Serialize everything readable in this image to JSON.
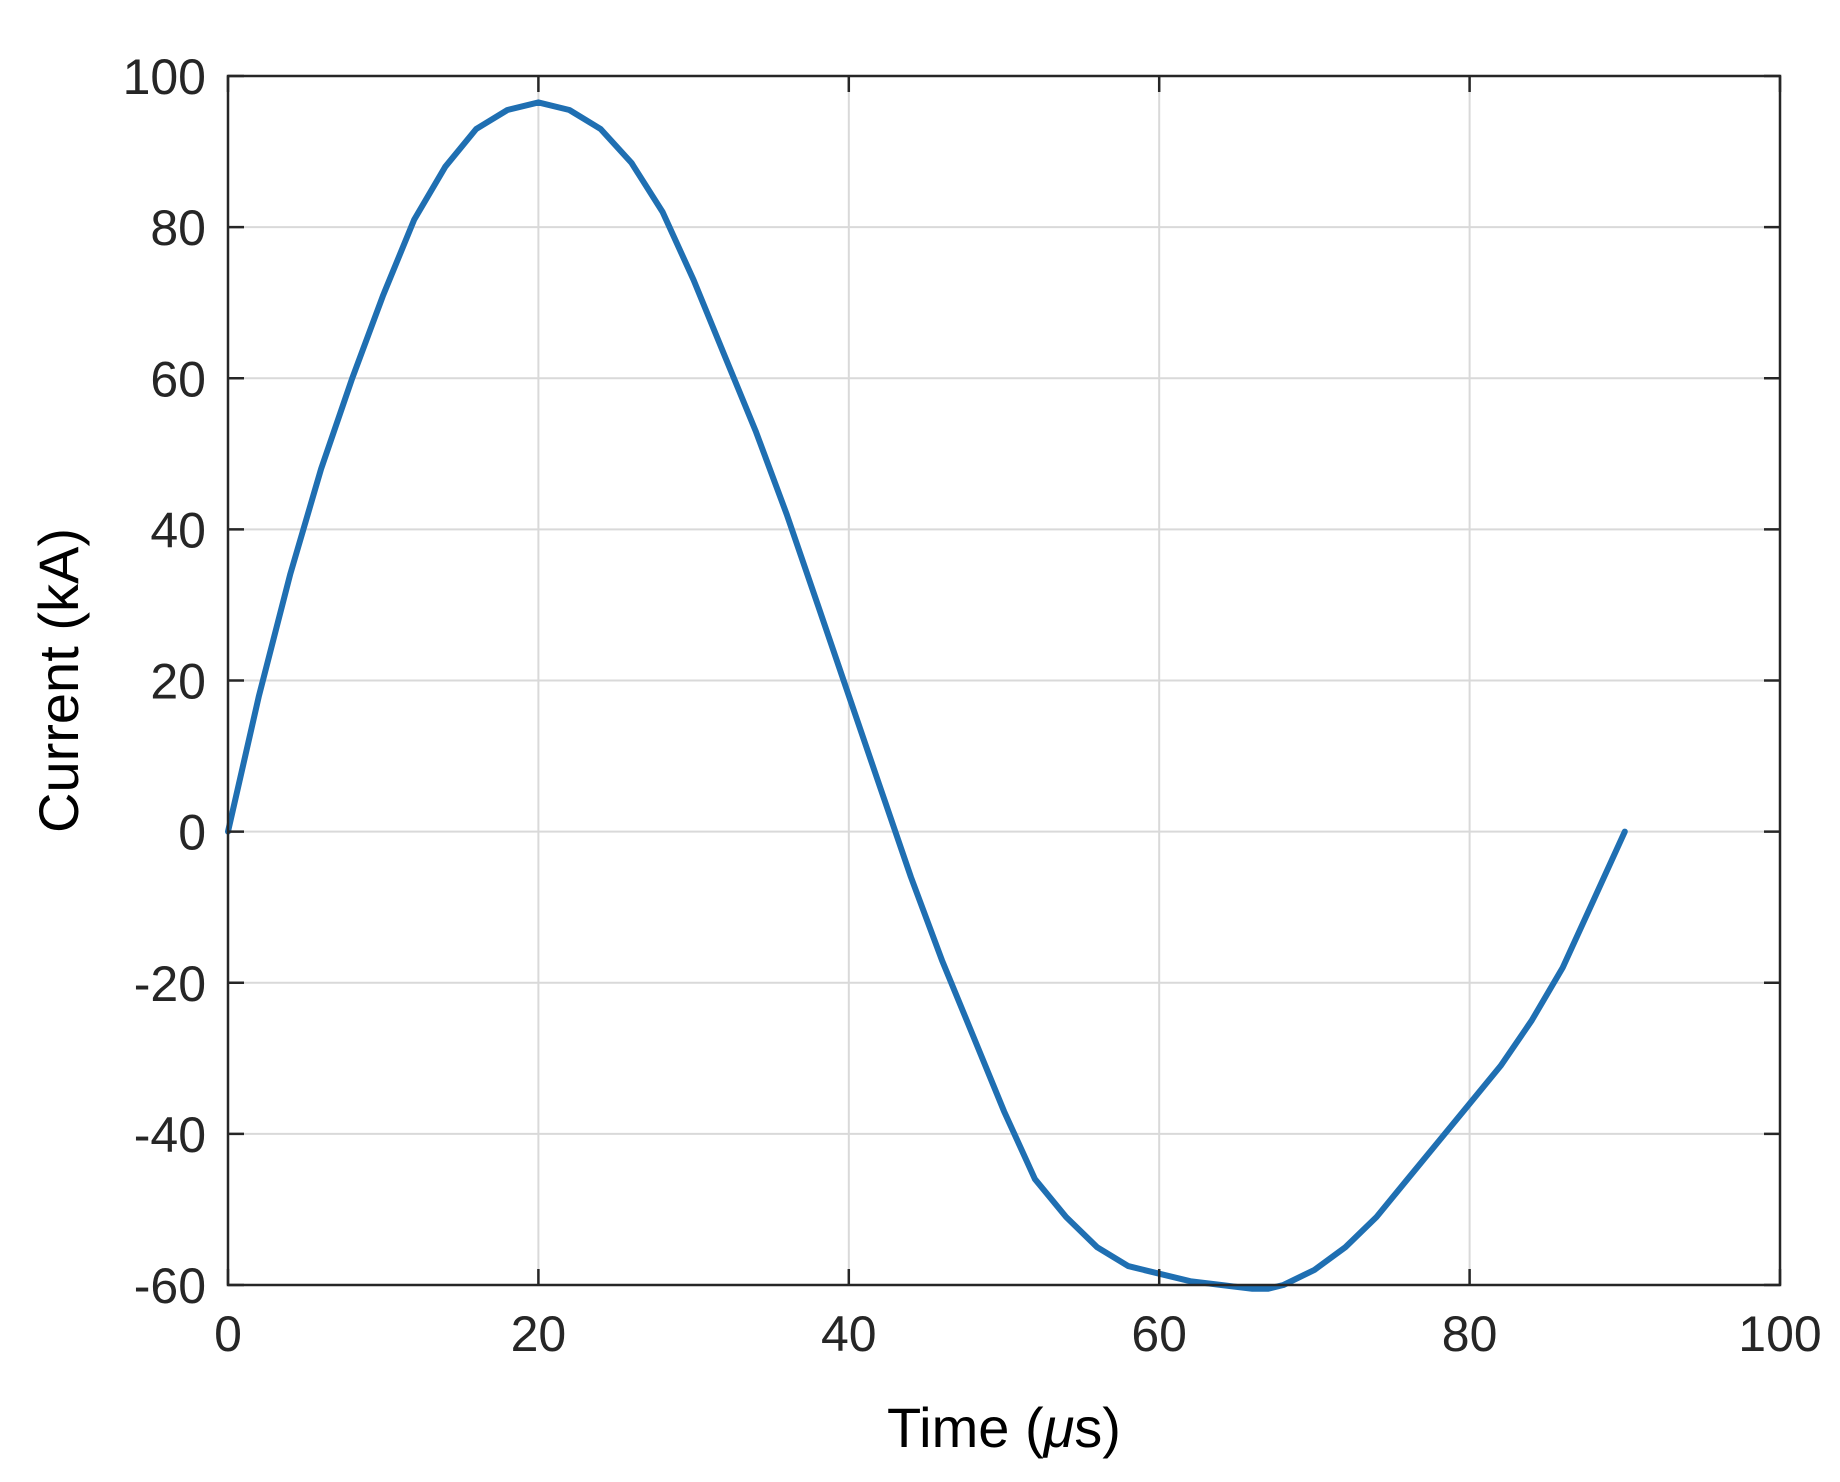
{
  "chart_data": {
    "type": "line",
    "title": "",
    "xlabel": "Time (",
    "xlabel_symbol": "μ",
    "xlabel_suffix": "s)",
    "ylabel": "Current (kA)",
    "xlim": [
      0,
      100
    ],
    "ylim": [
      -60,
      100
    ],
    "xticks": [
      "0",
      "20",
      "40",
      "60",
      "80",
      "100"
    ],
    "yticks": [
      "100",
      "80",
      "60",
      "40",
      "20",
      "0",
      "-20",
      "-40",
      "-60"
    ],
    "grid": true,
    "line_color": "#1f6fb2",
    "series": [
      {
        "x": [
          0,
          2,
          4,
          6,
          8,
          10,
          12,
          14,
          16,
          18,
          20,
          22,
          24,
          26,
          28,
          30,
          32,
          34,
          36,
          38,
          40,
          42,
          44,
          46,
          48,
          50,
          52,
          54,
          56,
          58,
          60,
          62,
          64,
          66,
          67,
          68,
          70,
          72,
          74,
          76,
          78,
          80,
          82,
          84,
          86,
          88,
          90
        ],
        "y": [
          0,
          18,
          34,
          48,
          60,
          71,
          81,
          88,
          93,
          95.5,
          96.5,
          95.5,
          93,
          88.5,
          82,
          73,
          63,
          53,
          42,
          30,
          18,
          6,
          -6,
          -17,
          -27,
          -37,
          -46,
          -51,
          -55,
          -57.5,
          -58.5,
          -59.5,
          -60,
          -60.5,
          -60.5,
          -60,
          -58,
          -55,
          -51,
          -46,
          -41,
          -36,
          -31,
          -25,
          -18,
          -9,
          0
        ]
      }
    ]
  }
}
